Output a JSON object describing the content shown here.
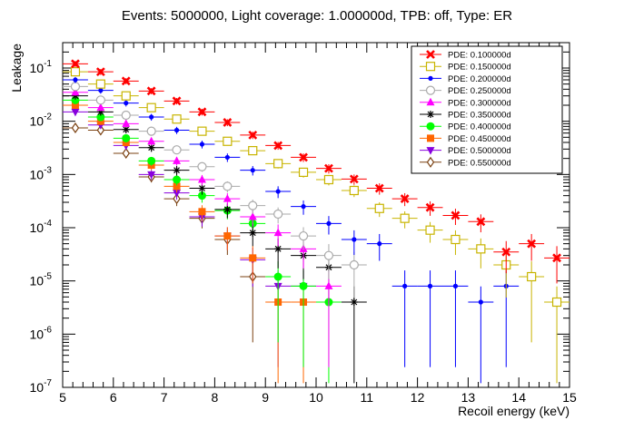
{
  "chart_data": {
    "type": "scatter",
    "title": "Events: 5000000, Light coverage: 1.000000d, TPB: off, Type: ER",
    "xlabel": "Recoil energy (keV)",
    "ylabel": "Leakage",
    "xlim": [
      5,
      15
    ],
    "ylim": [
      1e-07,
      0.3
    ],
    "log_y": true,
    "x_ticks": [
      "5",
      "6",
      "7",
      "8",
      "9",
      "10",
      "11",
      "12",
      "13",
      "14",
      "15"
    ],
    "y_ticks": [
      {
        "value": 1e-07,
        "base": "10",
        "exp": "-7"
      },
      {
        "value": 1e-06,
        "base": "10",
        "exp": "-6"
      },
      {
        "value": 1e-05,
        "base": "10",
        "exp": "-5"
      },
      {
        "value": 0.0001,
        "base": "10",
        "exp": "-4"
      },
      {
        "value": 0.001,
        "base": "10",
        "exp": "-3"
      },
      {
        "value": 0.01,
        "base": "10",
        "exp": "-2"
      },
      {
        "value": 0.1,
        "base": "10",
        "exp": "-1"
      }
    ],
    "bin_half_width": 0.25,
    "legend_position": "top-right",
    "series": [
      {
        "name": "PDE: 0.100000d",
        "color": "#ff0000",
        "marker": "x-thick",
        "x": [
          5.25,
          5.75,
          6.25,
          6.75,
          7.25,
          7.75,
          8.25,
          8.75,
          9.25,
          9.75,
          10.25,
          10.75,
          11.25,
          11.75,
          12.25,
          12.75,
          13.25,
          13.75,
          14.25,
          14.75
        ],
        "y": [
          0.12,
          0.085,
          0.057,
          0.037,
          0.024,
          0.015,
          0.0095,
          0.0055,
          0.0035,
          0.0021,
          0.0013,
          0.00082,
          0.00055,
          0.00035,
          0.00024,
          0.00017,
          0.00013,
          3.5e-05,
          5e-05,
          2.7e-05
        ]
      },
      {
        "name": "PDE: 0.150000d",
        "color": "#c8b400",
        "marker": "square-open",
        "x": [
          5.25,
          5.75,
          6.25,
          6.75,
          7.25,
          7.75,
          8.25,
          8.75,
          9.25,
          9.75,
          10.25,
          10.75,
          11.25,
          11.75,
          12.25,
          12.75,
          13.25,
          13.75,
          14.25,
          14.75
        ],
        "y": [
          0.085,
          0.05,
          0.03,
          0.018,
          0.011,
          0.0065,
          0.0042,
          0.0028,
          0.0016,
          0.0011,
          0.0008,
          0.0005,
          0.00023,
          0.00015,
          9e-05,
          6e-05,
          4e-05,
          2e-05,
          1.2e-05,
          4e-06
        ]
      },
      {
        "name": "PDE: 0.200000d",
        "color": "#0000ff",
        "marker": "circle-small",
        "x": [
          5.25,
          5.75,
          6.25,
          6.75,
          7.25,
          7.75,
          8.25,
          8.75,
          9.25,
          9.75,
          10.25,
          10.75,
          11.25,
          11.75,
          12.25,
          12.75,
          13.25,
          13.75
        ],
        "y": [
          0.06,
          0.038,
          0.022,
          0.012,
          0.0068,
          0.0037,
          0.0021,
          0.0012,
          0.00048,
          0.00025,
          0.00012,
          6e-05,
          5e-05,
          8e-06,
          8e-06,
          8e-06,
          4e-06,
          8e-06
        ]
      },
      {
        "name": "PDE: 0.250000d",
        "color": "#aaaaaa",
        "marker": "circle-open",
        "x": [
          5.25,
          5.75,
          6.25,
          6.75,
          7.25,
          7.75,
          8.25,
          8.75,
          9.25,
          9.75,
          10.25,
          10.75
        ],
        "y": [
          0.045,
          0.025,
          0.013,
          0.0065,
          0.0029,
          0.0014,
          0.0006,
          0.00026,
          0.00018,
          7e-05,
          3e-05,
          2e-05
        ]
      },
      {
        "name": "PDE: 0.300000d",
        "color": "#ff00ff",
        "marker": "triangle-up",
        "x": [
          5.25,
          5.75,
          6.25,
          6.75,
          7.25,
          7.75,
          8.25,
          8.75,
          9.25,
          9.75,
          10.25
        ],
        "y": [
          0.035,
          0.018,
          0.009,
          0.0042,
          0.0018,
          0.0008,
          0.00035,
          0.00016,
          8e-05,
          4e-05,
          8e-06
        ]
      },
      {
        "name": "PDE: 0.350000d",
        "color": "#000000",
        "marker": "star",
        "x": [
          5.25,
          5.75,
          6.25,
          6.75,
          7.25,
          7.75,
          8.25,
          8.75,
          9.25,
          9.75,
          10.25,
          10.75
        ],
        "y": [
          0.03,
          0.015,
          0.007,
          0.0032,
          0.0012,
          0.00055,
          0.00022,
          8e-05,
          4e-05,
          3e-05,
          1.8e-05,
          4e-06
        ]
      },
      {
        "name": "PDE: 0.400000d",
        "color": "#00ff00",
        "marker": "circle-filled",
        "x": [
          5.25,
          5.75,
          6.25,
          6.75,
          7.25,
          7.75,
          8.25,
          8.75,
          9.25,
          9.75,
          10.25
        ],
        "y": [
          0.025,
          0.012,
          0.0048,
          0.0018,
          0.0008,
          0.0004,
          0.00021,
          0.00012,
          1.2e-05,
          8e-06,
          4e-06
        ]
      },
      {
        "name": "PDE: 0.450000d",
        "color": "#ff6600",
        "marker": "square-filled",
        "x": [
          5.25,
          5.75,
          6.25,
          6.75,
          7.25,
          7.75,
          8.25,
          8.75,
          9.25,
          9.75
        ],
        "y": [
          0.02,
          0.01,
          0.004,
          0.0015,
          0.0006,
          0.0002,
          7e-05,
          2.7e-05,
          4e-06,
          4e-06
        ]
      },
      {
        "name": "PDE: 0.500000d",
        "color": "#8800dd",
        "marker": "triangle-down",
        "x": [
          5.25,
          5.75,
          6.25,
          6.75,
          7.25,
          7.75,
          8.25,
          8.75,
          9.25,
          9.75
        ],
        "y": [
          0.015,
          0.0085,
          0.0035,
          0.001,
          0.00045,
          0.00016,
          7e-05,
          2.5e-05,
          8e-06,
          8e-06
        ]
      },
      {
        "name": "PDE: 0.550000d",
        "color": "#7a4010",
        "marker": "diamond-open",
        "x": [
          5.25,
          5.75,
          6.25,
          6.75,
          7.25,
          7.75,
          8.25,
          8.75
        ],
        "y": [
          0.0075,
          0.0068,
          0.0025,
          0.0009,
          0.00035,
          0.00015,
          6e-05,
          1.2e-05
        ]
      }
    ]
  }
}
